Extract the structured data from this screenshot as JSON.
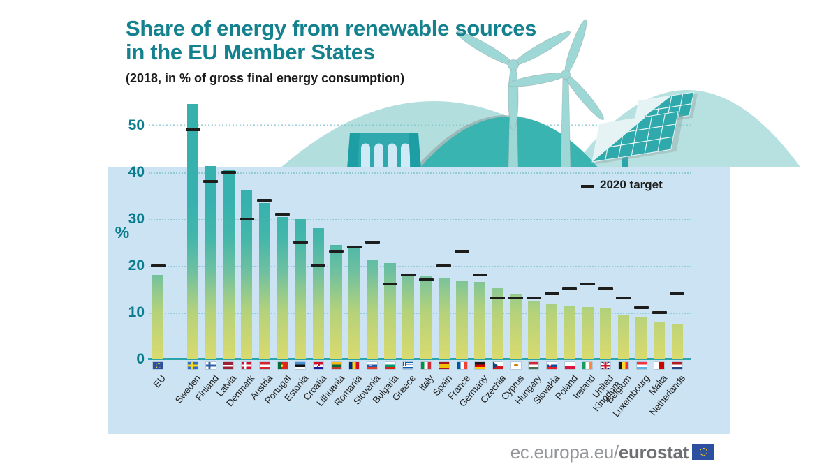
{
  "header": {
    "title": "Share of energy from renewable sources\nin the EU Member States",
    "subtitle": "(2018, in % of gross final energy consumption)"
  },
  "legend": {
    "label": "2020 target"
  },
  "y_axis": {
    "unit": "%",
    "ticks": [
      0,
      10,
      20,
      30,
      40,
      50
    ]
  },
  "chart_data": {
    "type": "bar",
    "title": "Share of energy from renewable sources in the EU Member States",
    "subtitle": "2018, in % of gross final energy consumption",
    "ylabel": "%",
    "ylim": [
      0,
      56
    ],
    "grid": "horizontal-dotted",
    "legend_position": "upper-right-inside",
    "series_names": [
      "share_2018",
      "target_2020"
    ],
    "items": [
      {
        "label": "EU",
        "flag": "eu",
        "value": 18.0,
        "target": 20
      },
      {
        "label": "Sweden",
        "flag": "sweden",
        "value": 54.6,
        "target": 49
      },
      {
        "label": "Finland",
        "flag": "finland",
        "value": 41.2,
        "target": 38
      },
      {
        "label": "Latvia",
        "flag": "latvia",
        "value": 40.3,
        "target": 40
      },
      {
        "label": "Denmark",
        "flag": "denmark",
        "value": 36.1,
        "target": 30
      },
      {
        "label": "Austria",
        "flag": "austria",
        "value": 33.4,
        "target": 34
      },
      {
        "label": "Portugal",
        "flag": "portugal",
        "value": 30.3,
        "target": 31
      },
      {
        "label": "Estonia",
        "flag": "estonia",
        "value": 30.0,
        "target": 25
      },
      {
        "label": "Croatia",
        "flag": "croatia",
        "value": 28.0,
        "target": 20
      },
      {
        "label": "Lithuania",
        "flag": "lithuania",
        "value": 24.4,
        "target": 23
      },
      {
        "label": "Romania",
        "flag": "romania",
        "value": 23.9,
        "target": 24
      },
      {
        "label": "Slovenia",
        "flag": "slovenia",
        "value": 21.1,
        "target": 25
      },
      {
        "label": "Bulgaria",
        "flag": "bulgaria",
        "value": 20.5,
        "target": 16
      },
      {
        "label": "Greece",
        "flag": "greece",
        "value": 18.0,
        "target": 18
      },
      {
        "label": "Italy",
        "flag": "italy",
        "value": 17.8,
        "target": 17
      },
      {
        "label": "Spain",
        "flag": "spain",
        "value": 17.4,
        "target": 20
      },
      {
        "label": "France",
        "flag": "france",
        "value": 16.6,
        "target": 23
      },
      {
        "label": "Germany",
        "flag": "germany",
        "value": 16.5,
        "target": 18
      },
      {
        "label": "Czechia",
        "flag": "czechia",
        "value": 15.1,
        "target": 13
      },
      {
        "label": "Cyprus",
        "flag": "cyprus",
        "value": 13.9,
        "target": 13
      },
      {
        "label": "Hungary",
        "flag": "hungary",
        "value": 12.5,
        "target": 13
      },
      {
        "label": "Slovakia",
        "flag": "slovakia",
        "value": 11.9,
        "target": 14
      },
      {
        "label": "Poland",
        "flag": "poland",
        "value": 11.3,
        "target": 15
      },
      {
        "label": "Ireland",
        "flag": "ireland",
        "value": 11.1,
        "target": 16
      },
      {
        "label": "United\nKingdom",
        "flag": "uk",
        "value": 11.0,
        "target": 15
      },
      {
        "label": "Belgium",
        "flag": "belgium",
        "value": 9.4,
        "target": 13
      },
      {
        "label": "Luxembourg",
        "flag": "luxembourg",
        "value": 9.1,
        "target": 11
      },
      {
        "label": "Malta",
        "flag": "malta",
        "value": 8.0,
        "target": 10
      },
      {
        "label": "Netherlands",
        "flag": "netherlands",
        "value": 7.4,
        "target": 14
      }
    ]
  },
  "illustration": {
    "icons": [
      "wind-turbine-icon",
      "solar-panel-icon",
      "hydro-dam-icon",
      "hills"
    ]
  },
  "footer": {
    "site_regular": "ec.europa.eu/",
    "site_bold": "eurostat"
  },
  "colors": {
    "title": "#14818f",
    "panel_background": "#cbe3f3",
    "axis": "#2aa5ab",
    "gridline": "#7cc5cf",
    "bar_bottom": "#d9da6e",
    "bar_top": "#37b1ae",
    "target_dash": "#1d1d1b",
    "hill_light": "#b2dedd",
    "hill_dark": "#3ab4b0",
    "eu_flag_blue": "#2d4f9f",
    "eu_flag_gold": "#f7d117"
  }
}
